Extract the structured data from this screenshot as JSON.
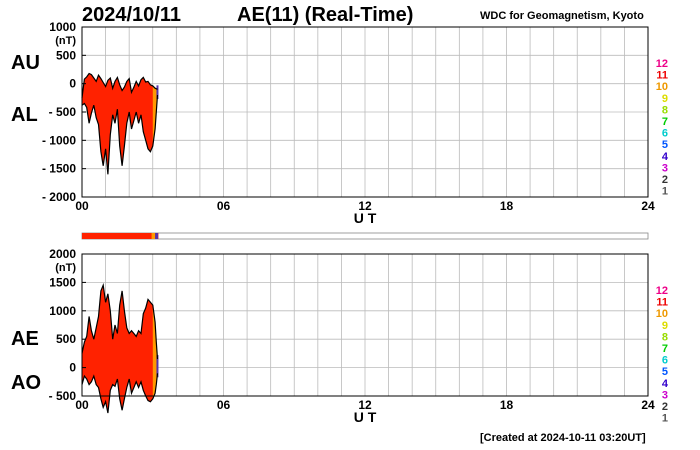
{
  "header": {
    "date": "2024/10/11",
    "title": "AE(11) (Real-Time)",
    "source": "WDC for Geomagnetism, Kyoto"
  },
  "footer": {
    "created": "[Created at 2024-10-11 03:20UT]"
  },
  "colors": {
    "hours": [
      "#000000",
      "#000000",
      "#555555",
      "#333333",
      "#cc00cc",
      "#3300cc",
      "#0055ff",
      "#00cccc",
      "#00cc00",
      "#99dd00",
      "#dddd00",
      "#ee9900",
      "#ee0000",
      "#ee0088"
    ],
    "main_fill": "#ff2200",
    "latest_fill": "#ff9900",
    "bar_purple": "#5533aa"
  },
  "chart_data": [
    {
      "type": "area",
      "panel": "upper",
      "labels": [
        "AU",
        "AL"
      ],
      "y_unit": "(nT)",
      "xlabel": "U T",
      "ylim": [
        -2000,
        1000
      ],
      "yticks": [
        "1000",
        "500",
        "0",
        "- 500",
        "- 1000",
        "- 1500",
        "- 2000"
      ],
      "yticks_values": [
        1000,
        500,
        0,
        -500,
        -1000,
        -1500,
        -2000
      ],
      "xticks": [
        "00",
        "06",
        "12",
        "18",
        "24"
      ],
      "xlim": [
        0,
        24
      ],
      "grid": true,
      "legend_hours": [
        "12",
        "11",
        "10",
        "9",
        "8",
        "7",
        "6",
        "5",
        "4",
        "3",
        "2",
        "1"
      ],
      "au": [
        [
          0,
          -250
        ],
        [
          0.1,
          80
        ],
        [
          0.2,
          120
        ],
        [
          0.3,
          180
        ],
        [
          0.4,
          160
        ],
        [
          0.5,
          100
        ],
        [
          0.6,
          40
        ],
        [
          0.7,
          150
        ],
        [
          0.8,
          90
        ],
        [
          0.9,
          20
        ],
        [
          1.0,
          -50
        ],
        [
          1.1,
          60
        ],
        [
          1.2,
          100
        ],
        [
          1.3,
          -80
        ],
        [
          1.4,
          40
        ],
        [
          1.5,
          110
        ],
        [
          1.6,
          -20
        ],
        [
          1.7,
          -120
        ],
        [
          1.8,
          -60
        ],
        [
          1.9,
          40
        ],
        [
          2.0,
          90
        ],
        [
          2.1,
          -150
        ],
        [
          2.2,
          -60
        ],
        [
          2.3,
          40
        ],
        [
          2.4,
          -40
        ],
        [
          2.5,
          70
        ],
        [
          2.6,
          110
        ],
        [
          2.7,
          30
        ],
        [
          2.8,
          40
        ],
        [
          2.9,
          -20
        ],
        [
          3.0,
          -40
        ],
        [
          3.1,
          -80
        ],
        [
          3.15,
          -90
        ],
        [
          3.2,
          -100
        ]
      ],
      "al": [
        [
          0,
          -380
        ],
        [
          0.1,
          -350
        ],
        [
          0.2,
          -420
        ],
        [
          0.3,
          -700
        ],
        [
          0.4,
          -520
        ],
        [
          0.5,
          -380
        ],
        [
          0.6,
          -600
        ],
        [
          0.7,
          -720
        ],
        [
          0.8,
          -1200
        ],
        [
          0.9,
          -1450
        ],
        [
          1.0,
          -1150
        ],
        [
          1.1,
          -1600
        ],
        [
          1.2,
          -900
        ],
        [
          1.3,
          -550
        ],
        [
          1.4,
          -700
        ],
        [
          1.5,
          -450
        ],
        [
          1.6,
          -1100
        ],
        [
          1.7,
          -1450
        ],
        [
          1.8,
          -1100
        ],
        [
          1.9,
          -700
        ],
        [
          2.0,
          -500
        ],
        [
          2.1,
          -800
        ],
        [
          2.2,
          -650
        ],
        [
          2.3,
          -500
        ],
        [
          2.4,
          -700
        ],
        [
          2.5,
          -550
        ],
        [
          2.6,
          -850
        ],
        [
          2.7,
          -1000
        ],
        [
          2.8,
          -1150
        ],
        [
          2.9,
          -1200
        ],
        [
          3.0,
          -1100
        ],
        [
          3.1,
          -800
        ],
        [
          3.15,
          -500
        ],
        [
          3.2,
          -200
        ]
      ]
    },
    {
      "type": "area",
      "panel": "lower",
      "labels": [
        "AE",
        "AO"
      ],
      "y_unit": "(nT)",
      "xlabel": "U T",
      "ylim": [
        -500,
        2000
      ],
      "yticks": [
        "2000",
        "1500",
        "1000",
        "500",
        "0",
        "- 500"
      ],
      "yticks_values": [
        2000,
        1500,
        1000,
        500,
        0,
        -500
      ],
      "xticks": [
        "00",
        "06",
        "12",
        "18",
        "24"
      ],
      "xlim": [
        0,
        24
      ],
      "grid": true,
      "legend_hours": [
        "12",
        "11",
        "10",
        "9",
        "8",
        "7",
        "6",
        "5",
        "4",
        "3",
        "2",
        "1"
      ],
      "ae": [
        [
          0,
          250
        ],
        [
          0.1,
          450
        ],
        [
          0.2,
          550
        ],
        [
          0.3,
          900
        ],
        [
          0.4,
          650
        ],
        [
          0.5,
          500
        ],
        [
          0.6,
          700
        ],
        [
          0.7,
          900
        ],
        [
          0.8,
          1350
        ],
        [
          0.9,
          1450
        ],
        [
          1.0,
          1150
        ],
        [
          1.1,
          1300
        ],
        [
          1.2,
          1000
        ],
        [
          1.3,
          500
        ],
        [
          1.4,
          750
        ],
        [
          1.5,
          600
        ],
        [
          1.6,
          1100
        ],
        [
          1.7,
          1350
        ],
        [
          1.8,
          1000
        ],
        [
          1.9,
          700
        ],
        [
          2.0,
          600
        ],
        [
          2.1,
          650
        ],
        [
          2.2,
          600
        ],
        [
          2.3,
          550
        ],
        [
          2.4,
          650
        ],
        [
          2.5,
          600
        ],
        [
          2.6,
          950
        ],
        [
          2.7,
          1050
        ],
        [
          2.8,
          1200
        ],
        [
          2.9,
          1150
        ],
        [
          3.0,
          1100
        ],
        [
          3.1,
          800
        ],
        [
          3.15,
          450
        ],
        [
          3.2,
          150
        ]
      ],
      "ao": [
        [
          0,
          -300
        ],
        [
          0.1,
          -150
        ],
        [
          0.2,
          -200
        ],
        [
          0.3,
          -300
        ],
        [
          0.4,
          -250
        ],
        [
          0.5,
          -150
        ],
        [
          0.6,
          -300
        ],
        [
          0.7,
          -350
        ],
        [
          0.8,
          -550
        ],
        [
          0.9,
          -700
        ],
        [
          1.0,
          -600
        ],
        [
          1.1,
          -800
        ],
        [
          1.2,
          -400
        ],
        [
          1.3,
          -300
        ],
        [
          1.4,
          -330
        ],
        [
          1.5,
          -200
        ],
        [
          1.6,
          -550
        ],
        [
          1.7,
          -750
        ],
        [
          1.8,
          -550
        ],
        [
          1.9,
          -350
        ],
        [
          2.0,
          -200
        ],
        [
          2.1,
          -450
        ],
        [
          2.2,
          -350
        ],
        [
          2.3,
          -250
        ],
        [
          2.4,
          -350
        ],
        [
          2.5,
          -250
        ],
        [
          2.6,
          -400
        ],
        [
          2.7,
          -500
        ],
        [
          2.8,
          -580
        ],
        [
          2.9,
          -600
        ],
        [
          3.0,
          -550
        ],
        [
          3.1,
          -450
        ],
        [
          3.15,
          -300
        ],
        [
          3.2,
          -100
        ]
      ]
    }
  ],
  "progress_bar": {
    "fraction_filled": 0.135,
    "orange_start": 2.95,
    "purple_start": 3.1
  }
}
